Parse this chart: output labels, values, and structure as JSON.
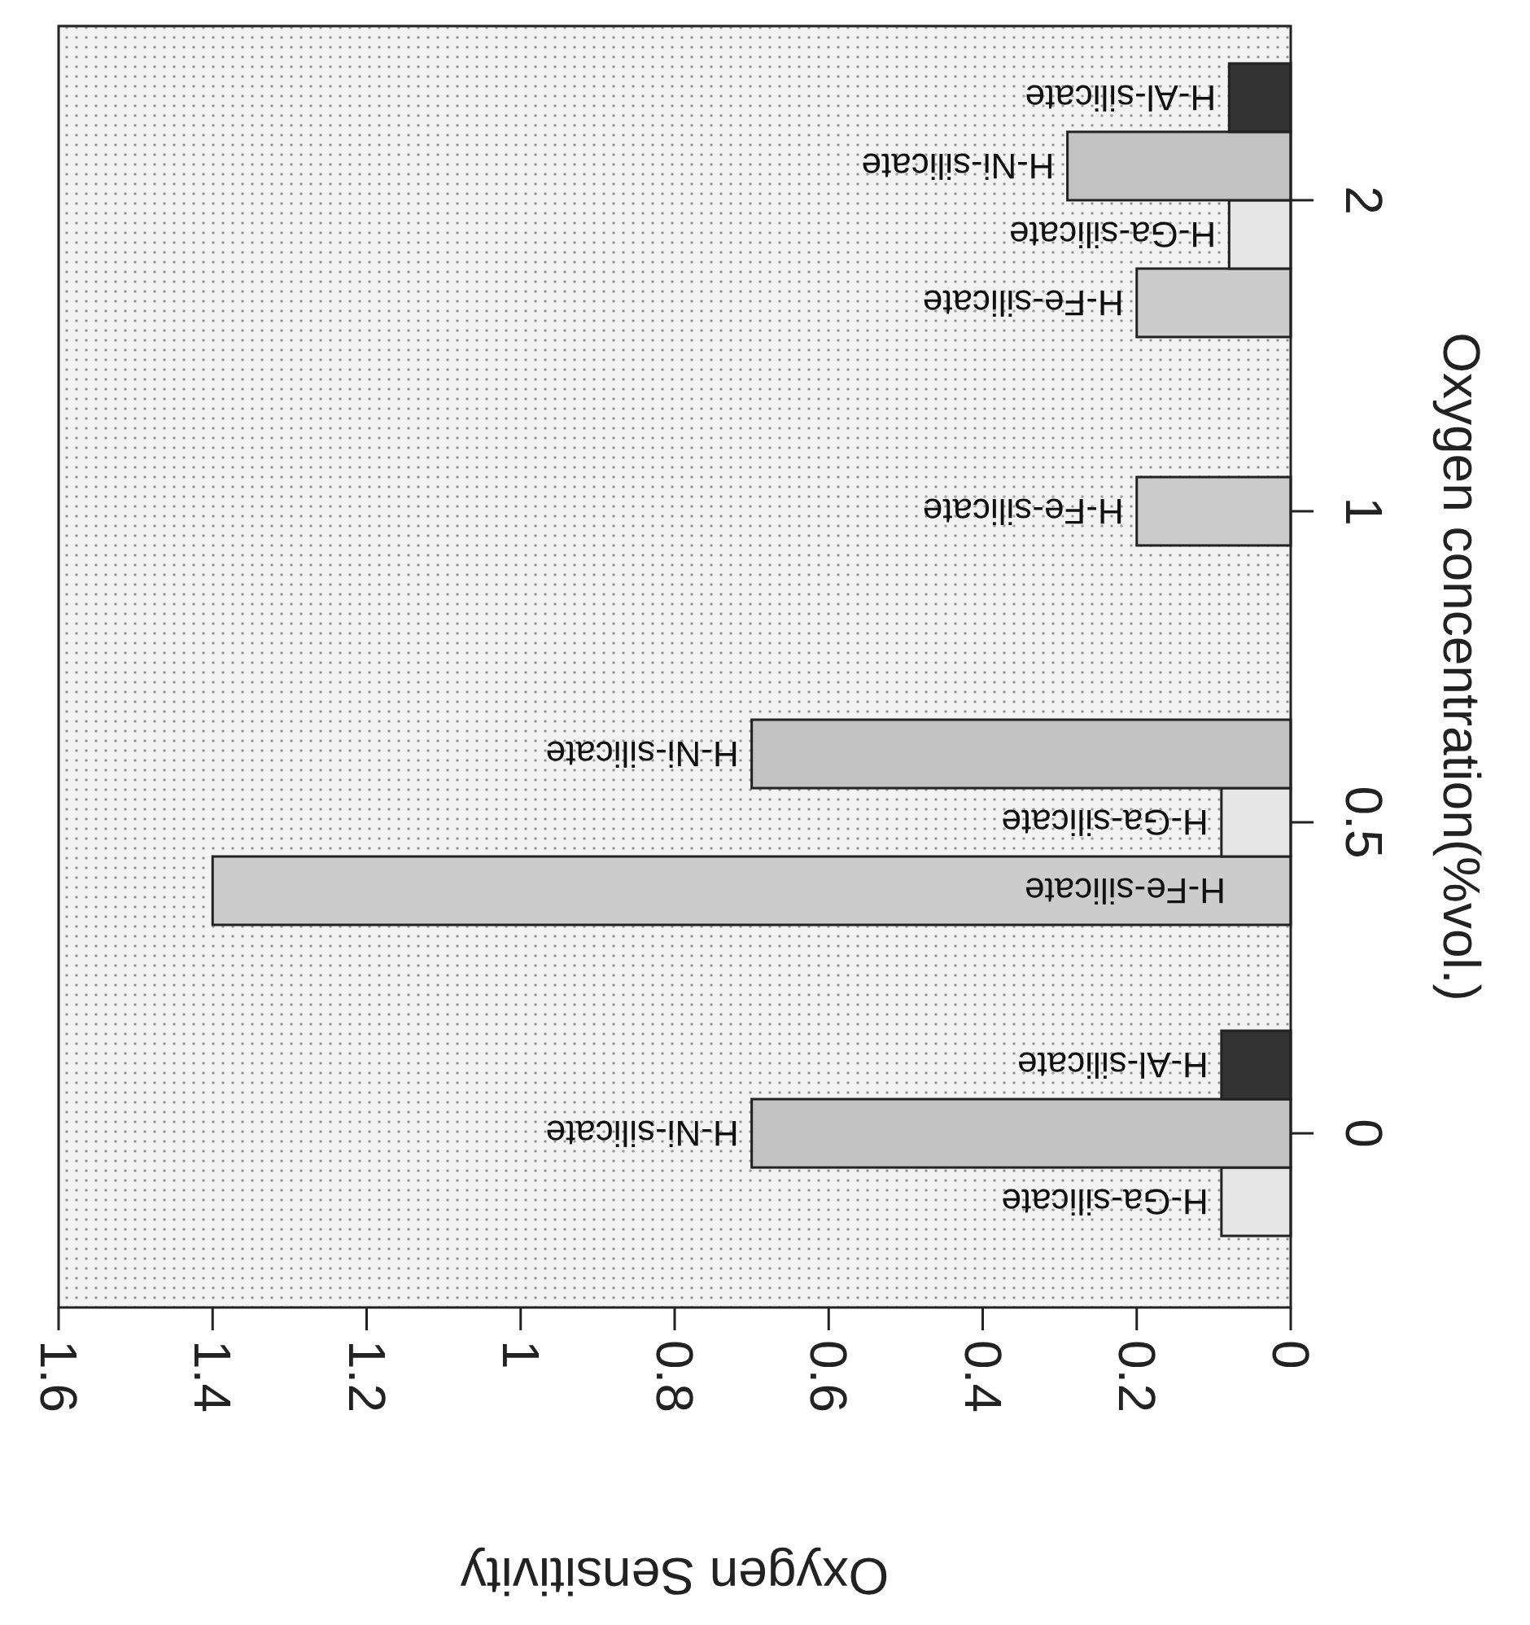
{
  "chart_data": {
    "type": "bar",
    "orientation": "horizontal",
    "xlabel": "Oxygen Sensitivity",
    "ylabel": "Oxygen concentration(%vol.)",
    "categories": [
      "2",
      "1",
      "0.5",
      "0"
    ],
    "series": [
      {
        "name": "H-Fe-silicate",
        "color": "#cccccc",
        "values": [
          0.2,
          0.2,
          1.4,
          null
        ]
      },
      {
        "name": "H-Ga-silicate",
        "color": "#e6e6e6",
        "values": [
          0.08,
          null,
          0.09,
          0.09
        ]
      },
      {
        "name": "H-Ni-silicate",
        "color": "#c2c2c2",
        "values": [
          0.29,
          null,
          0.7,
          0.7
        ]
      },
      {
        "name": "H-Al-silicate",
        "color": "#333333",
        "values": [
          0.08,
          null,
          null,
          0.09
        ]
      }
    ],
    "xlim": [
      1.6,
      0
    ],
    "xticks": [
      1.6,
      1.4,
      1.2,
      1,
      0.8,
      0.6,
      0.4,
      0.2,
      0
    ],
    "grid": false
  }
}
